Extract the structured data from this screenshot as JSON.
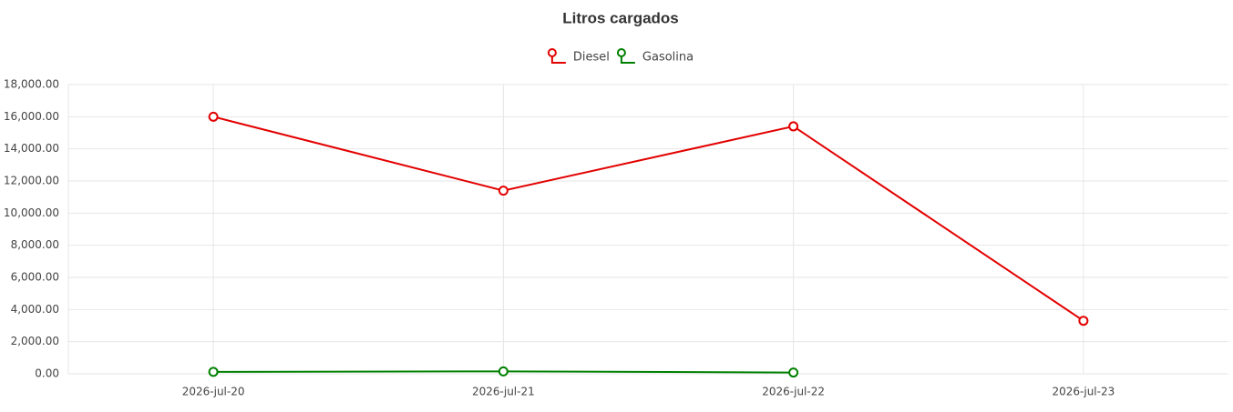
{
  "chart_data": {
    "type": "line",
    "title": "Litros cargados",
    "categories": [
      "2026-jul-20",
      "2026-jul-21",
      "2026-jul-22",
      "2026-jul-23"
    ],
    "series": [
      {
        "name": "Diesel",
        "color": "#e30000",
        "values": [
          16000,
          11400,
          15400,
          3300
        ]
      },
      {
        "name": "Gasolina",
        "color": "#008000",
        "values": [
          120,
          150,
          80,
          null
        ]
      }
    ],
    "ylim": [
      0,
      18000
    ],
    "yticks": [
      {
        "value": 0,
        "label": "0.00"
      },
      {
        "value": 2000,
        "label": "2,000.00"
      },
      {
        "value": 4000,
        "label": "4,000.00"
      },
      {
        "value": 6000,
        "label": "6,000.00"
      },
      {
        "value": 8000,
        "label": "8,000.00"
      },
      {
        "value": 10000,
        "label": "10,000.00"
      },
      {
        "value": 12000,
        "label": "12,000.00"
      },
      {
        "value": 14000,
        "label": "14,000.00"
      },
      {
        "value": 16000,
        "label": "16,000.00"
      },
      {
        "value": 18000,
        "label": "18,000.00"
      }
    ],
    "grid": true
  }
}
